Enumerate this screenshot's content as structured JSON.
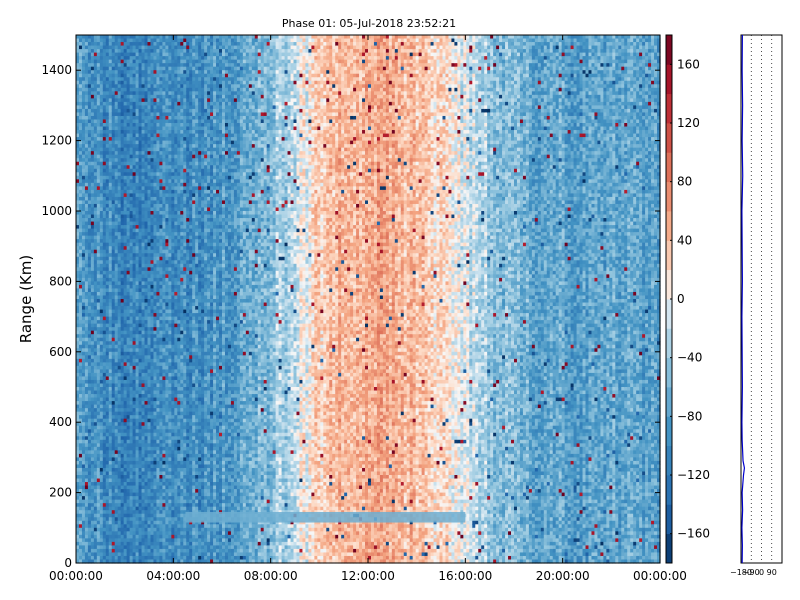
{
  "chart_data": [
    {
      "type": "heatmap",
      "title": "Phase 01: 05-Jul-2018 23:52:21",
      "xlabel": "",
      "ylabel": "Range (Km)",
      "xlim_hours": [
        0,
        24
      ],
      "ylim": [
        0,
        1500
      ],
      "x_ticks": [
        "00:00:00",
        "04:00:00",
        "08:00:00",
        "12:00:00",
        "16:00:00",
        "20:00:00",
        "00:00:00"
      ],
      "x_tick_hours": [
        0,
        4,
        8,
        12,
        16,
        20,
        24
      ],
      "y_ticks": [
        0,
        200,
        400,
        600,
        800,
        1000,
        1200,
        1400
      ],
      "colormap": "RdBu_r",
      "zlim": [
        -180,
        180
      ],
      "colorbar_ticks": [
        -160,
        -120,
        -80,
        -40,
        0,
        40,
        80,
        120,
        160
      ],
      "mean_phase_by_hour": [
        {
          "hour": 0,
          "phase": -80
        },
        {
          "hour": 1,
          "phase": -95
        },
        {
          "hour": 2,
          "phase": -110
        },
        {
          "hour": 3,
          "phase": -105
        },
        {
          "hour": 4,
          "phase": -100
        },
        {
          "hour": 5,
          "phase": -95
        },
        {
          "hour": 6,
          "phase": -85
        },
        {
          "hour": 7,
          "phase": -70
        },
        {
          "hour": 8,
          "phase": -50
        },
        {
          "hour": 9,
          "phase": -20
        },
        {
          "hour": 10,
          "phase": 30
        },
        {
          "hour": 11,
          "phase": 50
        },
        {
          "hour": 12,
          "phase": 55
        },
        {
          "hour": 13,
          "phase": 50
        },
        {
          "hour": 14,
          "phase": 40
        },
        {
          "hour": 15,
          "phase": 20
        },
        {
          "hour": 16,
          "phase": -10
        },
        {
          "hour": 17,
          "phase": -40
        },
        {
          "hour": 18,
          "phase": -60
        },
        {
          "hour": 19,
          "phase": -70
        },
        {
          "hour": 20,
          "phase": -75
        },
        {
          "hour": 21,
          "phase": -75
        },
        {
          "hour": 22,
          "phase": -75
        },
        {
          "hour": 23,
          "phase": -78
        },
        {
          "hour": 24,
          "phase": -80
        }
      ],
      "band_feature": {
        "range_km": [
          115,
          145
        ],
        "hours": [
          4.5,
          16
        ],
        "phase": -65
      }
    },
    {
      "type": "line",
      "xlim": [
        -180,
        180
      ],
      "x_ticks": [
        "−180",
        "−90",
        "0",
        "90"
      ],
      "x_tick_values": [
        -180,
        -90,
        0,
        90
      ],
      "ylim": [
        0,
        1500
      ],
      "series_color": "#0000cc",
      "profile": [
        {
          "range": 0,
          "phase": -170
        },
        {
          "range": 50,
          "phase": -168
        },
        {
          "range": 100,
          "phase": -172
        },
        {
          "range": 150,
          "phase": -166
        },
        {
          "range": 200,
          "phase": -170
        },
        {
          "range": 250,
          "phase": -158
        },
        {
          "range": 270,
          "phase": -150
        },
        {
          "range": 290,
          "phase": -162
        },
        {
          "range": 350,
          "phase": -170
        },
        {
          "range": 400,
          "phase": -172
        },
        {
          "range": 500,
          "phase": -168
        },
        {
          "range": 600,
          "phase": -170
        },
        {
          "range": 700,
          "phase": -172
        },
        {
          "range": 800,
          "phase": -168
        },
        {
          "range": 900,
          "phase": -170
        },
        {
          "range": 1000,
          "phase": -172
        },
        {
          "range": 1100,
          "phase": -165
        },
        {
          "range": 1200,
          "phase": -170
        },
        {
          "range": 1300,
          "phase": -166
        },
        {
          "range": 1400,
          "phase": -170
        },
        {
          "range": 1500,
          "phase": -168
        }
      ]
    }
  ],
  "colors": {
    "axis": "#000000",
    "grid": "#000000",
    "line": "#0000cc"
  }
}
